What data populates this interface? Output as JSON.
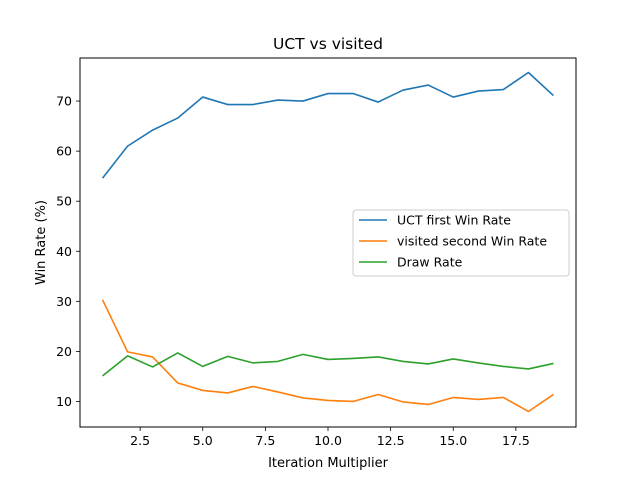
{
  "chart_data": {
    "type": "line",
    "title": "UCT vs visited",
    "xlabel": "Iteration Multiplier",
    "ylabel": "Win Rate (%)",
    "x": [
      1,
      2,
      3,
      4,
      5,
      6,
      7,
      8,
      9,
      10,
      11,
      12,
      13,
      14,
      15,
      16,
      17,
      18,
      19
    ],
    "xlim": [
      0.1,
      19.9
    ],
    "ylim": [
      4.9,
      78.6
    ],
    "xticks": [
      2.5,
      5.0,
      7.5,
      10.0,
      12.5,
      15.0,
      17.5
    ],
    "xtick_labels": [
      "2.5",
      "5.0",
      "7.5",
      "10.0",
      "12.5",
      "15.0",
      "17.5"
    ],
    "yticks": [
      10,
      20,
      30,
      40,
      50,
      60,
      70
    ],
    "ytick_labels": [
      "10",
      "20",
      "30",
      "40",
      "50",
      "60",
      "70"
    ],
    "grid": false,
    "legend_position": "center-right",
    "series": [
      {
        "name": "UCT first Win Rate",
        "color": "#1f77b4",
        "values": [
          54.6,
          61.0,
          64.2,
          66.6,
          70.8,
          69.3,
          69.3,
          70.2,
          70.0,
          71.5,
          71.5,
          69.8,
          72.2,
          73.2,
          70.8,
          72.0,
          72.3,
          75.7,
          71.1
        ]
      },
      {
        "name": "visited second Win Rate",
        "color": "#ff7f0e",
        "values": [
          30.3,
          19.9,
          18.9,
          13.7,
          12.2,
          11.7,
          13.0,
          11.9,
          10.7,
          10.2,
          10.0,
          11.4,
          9.9,
          9.4,
          10.8,
          10.4,
          10.8,
          8.0,
          11.4
        ]
      },
      {
        "name": "Draw Rate",
        "color": "#2ca02c",
        "values": [
          15.1,
          19.1,
          16.9,
          19.7,
          17.0,
          19.0,
          17.7,
          18.0,
          19.4,
          18.4,
          18.6,
          18.9,
          18.0,
          17.5,
          18.5,
          17.7,
          17.0,
          16.5,
          17.6
        ]
      }
    ]
  }
}
